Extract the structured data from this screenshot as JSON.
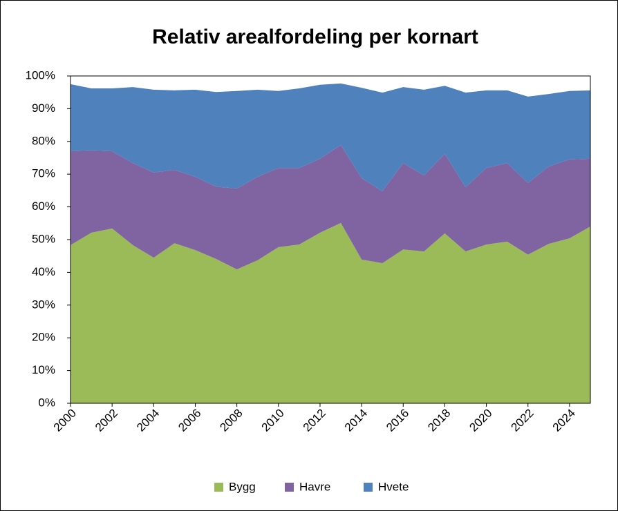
{
  "chart_data": {
    "type": "stacked_area",
    "title": "Relativ arealfordeling per kornart",
    "x": [
      2000,
      2001,
      2002,
      2003,
      2004,
      2005,
      2006,
      2007,
      2008,
      2009,
      2010,
      2011,
      2012,
      2013,
      2014,
      2015,
      2016,
      2017,
      2018,
      2019,
      2020,
      2021,
      2022,
      2023,
      2024,
      2025
    ],
    "series": [
      {
        "name": "Bygg",
        "color": "#9bbb59",
        "values": [
          48.3,
          52.1,
          53.4,
          48.3,
          44.5,
          48.9,
          46.8,
          44.1,
          40.9,
          43.7,
          47.7,
          48.5,
          52.1,
          55.1,
          43.9,
          42.8,
          47.0,
          46.4,
          51.9,
          46.4,
          48.5,
          49.4,
          45.4,
          48.7,
          50.4,
          54.0
        ]
      },
      {
        "name": "Havre",
        "color": "#8064a2",
        "values": [
          28.7,
          25.1,
          23.6,
          25.1,
          26.0,
          22.4,
          22.4,
          22.1,
          24.7,
          25.5,
          24.2,
          23.4,
          22.6,
          23.8,
          24.9,
          22.0,
          26.4,
          23.2,
          24.3,
          19.6,
          23.4,
          24.0,
          21.9,
          23.7,
          24.1,
          20.7
        ]
      },
      {
        "name": "Hvete",
        "color": "#4f81bd",
        "values": [
          20.5,
          19.0,
          19.2,
          23.2,
          25.3,
          24.3,
          26.6,
          28.9,
          29.8,
          26.6,
          23.5,
          24.3,
          22.6,
          18.8,
          27.6,
          30.1,
          23.2,
          26.2,
          20.8,
          28.9,
          23.7,
          22.2,
          26.4,
          22.1,
          20.9,
          20.9
        ]
      }
    ],
    "xlim": [
      2000,
      2025
    ],
    "xticks": [
      2000,
      2002,
      2004,
      2006,
      2008,
      2010,
      2012,
      2014,
      2016,
      2018,
      2020,
      2022,
      2024
    ],
    "ylim": [
      0,
      100
    ],
    "yticks": [
      {
        "value": 0,
        "label": "0%"
      },
      {
        "value": 10,
        "label": "10%"
      },
      {
        "value": 20,
        "label": "20%"
      },
      {
        "value": 30,
        "label": "30%"
      },
      {
        "value": 40,
        "label": "40%"
      },
      {
        "value": 50,
        "label": "50%"
      },
      {
        "value": 60,
        "label": "60%"
      },
      {
        "value": 70,
        "label": "70%"
      },
      {
        "value": 80,
        "label": "80%"
      },
      {
        "value": 90,
        "label": "90%"
      },
      {
        "value": 100,
        "label": "100%"
      }
    ],
    "legend": "bottom"
  }
}
